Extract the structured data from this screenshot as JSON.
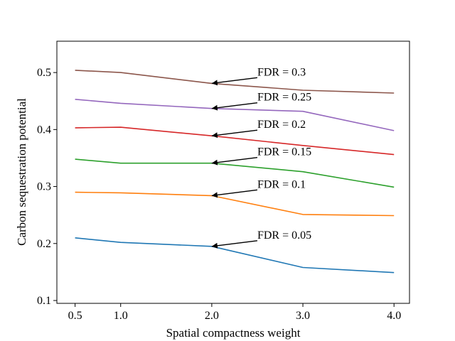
{
  "chart_data": {
    "type": "line",
    "title": "",
    "xlabel": "Spatial compactness weight",
    "ylabel": "Carbon sequestration potential",
    "x": [
      0.5,
      1.0,
      2.0,
      3.0,
      4.0
    ],
    "x_tick_labels": [
      "0.5",
      "1.0",
      "2.0",
      "3.0",
      "4.0"
    ],
    "y_ticks": [
      0.1,
      0.2,
      0.3,
      0.4,
      0.5
    ],
    "y_tick_labels": [
      "0.1",
      "0.2",
      "0.3",
      "0.4",
      "0.5"
    ],
    "xlim": [
      0.3,
      4.17
    ],
    "ylim": [
      0.095,
      0.555
    ],
    "grid": false,
    "legend": "none",
    "series": [
      {
        "color": "#1f77b4",
        "values": [
          0.21,
          0.202,
          0.195,
          0.158,
          0.149
        ]
      },
      {
        "color": "#ff7f0e",
        "values": [
          0.29,
          0.289,
          0.284,
          0.251,
          0.249
        ]
      },
      {
        "color": "#2ca02c",
        "values": [
          0.348,
          0.341,
          0.341,
          0.326,
          0.299
        ]
      },
      {
        "color": "#d62728",
        "values": [
          0.403,
          0.404,
          0.389,
          0.372,
          0.356
        ]
      },
      {
        "color": "#9467bd",
        "values": [
          0.453,
          0.446,
          0.437,
          0.432,
          0.398
        ]
      },
      {
        "color": "#8c564b",
        "values": [
          0.504,
          0.5,
          0.481,
          0.469,
          0.464
        ]
      }
    ],
    "annotations": [
      {
        "text": "FDR = 0.05",
        "text_x": 2.5,
        "text_y": 0.205,
        "point_x": 2.0,
        "point_y": 0.195
      },
      {
        "text": "FDR = 0.1",
        "text_x": 2.5,
        "text_y": 0.294,
        "point_x": 2.0,
        "point_y": 0.284
      },
      {
        "text": "FDR = 0.15",
        "text_x": 2.5,
        "text_y": 0.351,
        "point_x": 2.0,
        "point_y": 0.341
      },
      {
        "text": "FDR = 0.2",
        "text_x": 2.5,
        "text_y": 0.399,
        "point_x": 2.0,
        "point_y": 0.389
      },
      {
        "text": "FDR = 0.25",
        "text_x": 2.5,
        "text_y": 0.447,
        "point_x": 2.0,
        "point_y": 0.437
      },
      {
        "text": "FDR = 0.3",
        "text_x": 2.5,
        "text_y": 0.491,
        "point_x": 2.0,
        "point_y": 0.481
      }
    ]
  }
}
